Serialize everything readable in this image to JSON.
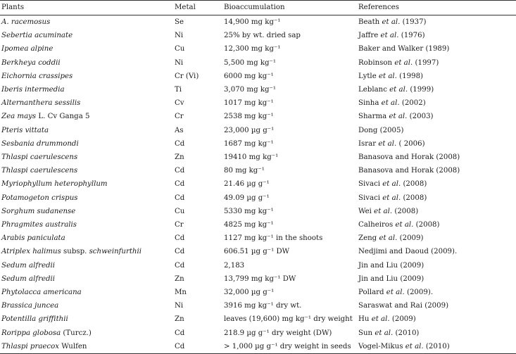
{
  "table": {
    "headers": [
      "Plants",
      "Metal",
      "Bioaccumulation",
      "References"
    ],
    "rows": [
      {
        "plant": "A. racemosus",
        "plant_suffix": "",
        "metal": "Se",
        "bio": "14,900 mg kg⁻¹",
        "ref_pre": "Beath ",
        "ref_ital": "et al.",
        "ref_post": " (1937)"
      },
      {
        "plant": "Sebertia acuminate",
        "plant_suffix": "",
        "metal": "Ni",
        "bio": "25% by wt. dried sap",
        "ref_pre": "Jaffre ",
        "ref_ital": "et al.",
        "ref_post": " (1976)"
      },
      {
        "plant": "Ipomea alpine",
        "plant_suffix": "",
        "metal": "Cu",
        "bio": "12,300 mg kg⁻¹",
        "ref_pre": "Baker and Walker (1989)",
        "ref_ital": "",
        "ref_post": ""
      },
      {
        "plant": "Berkheya coddii",
        "plant_suffix": "",
        "metal": "Ni",
        "bio": "5,500 mg kg⁻¹",
        "ref_pre": "Robinson ",
        "ref_ital": "et al.",
        "ref_post": " (1997)"
      },
      {
        "plant": "Eichornia crassipes",
        "plant_suffix": "",
        "metal": "Cr (Vi)",
        "bio": "6000 mg kg⁻¹",
        "ref_pre": "Lytle ",
        "ref_ital": "et al.",
        "ref_post": " (1998)"
      },
      {
        "plant": "Iberis intermedia",
        "plant_suffix": "",
        "metal": "Ti",
        "bio": "3,070 mg kg⁻¹",
        "ref_pre": "Leblanc ",
        "ref_ital": "et al.",
        "ref_post": " (1999)"
      },
      {
        "plant": "Alternanthera sessilis",
        "plant_suffix": "",
        "metal": "Cv",
        "bio": "1017 mg kg⁻¹",
        "ref_pre": "Sinha ",
        "ref_ital": "et al.",
        "ref_post": " (2002)"
      },
      {
        "plant": "Zea mays",
        "plant_suffix": " L. Cv Ganga 5",
        "metal": "Cr",
        "bio": "2538 mg kg⁻¹",
        "ref_pre": "Sharma ",
        "ref_ital": "et al.",
        "ref_post": " (2003)"
      },
      {
        "plant": "Pteris vittata",
        "plant_suffix": "",
        "metal": "As",
        "bio": "23,000 µg g⁻¹",
        "ref_pre": "Dong (2005)",
        "ref_ital": "",
        "ref_post": ""
      },
      {
        "plant": "Sesbania drummondi",
        "plant_suffix": "",
        "metal": "Cd",
        "bio": "1687 mg kg⁻¹",
        "ref_pre": "Israr ",
        "ref_ital": "et al.",
        "ref_post": " ( 2006)"
      },
      {
        "plant": "Thlaspi caerulescens",
        "plant_suffix": "",
        "metal": "Zn",
        "bio": "19410 mg kg⁻¹",
        "ref_pre": "Banasova and Horak (2008)",
        "ref_ital": "",
        "ref_post": ""
      },
      {
        "plant": "Thlaspi caerulescens",
        "plant_suffix": "",
        "metal": "Cd",
        "bio": "80 mg kg⁻¹",
        "ref_pre": "Banasova and Horak (2008)",
        "ref_ital": "",
        "ref_post": ""
      },
      {
        "plant": "Myriophyllum heterophyllum",
        "plant_suffix": "",
        "metal": "Cd",
        "bio": "21.46 µg g⁻¹",
        "ref_pre": "Sivaci ",
        "ref_ital": "et al.",
        "ref_post": " (2008)"
      },
      {
        "plant": "Potamogeton crispus",
        "plant_suffix": "",
        "metal": "Cd",
        "bio": "49.09 µg g⁻¹",
        "ref_pre": "Sivaci ",
        "ref_ital": "et al.",
        "ref_post": " (2008)"
      },
      {
        "plant": "Sorghum sudanense",
        "plant_suffix": "",
        "metal": "Cu",
        "bio": "5330 mg kg⁻¹",
        "ref_pre": "Wei ",
        "ref_ital": "et al.",
        "ref_post": " (2008)"
      },
      {
        "plant": "Phragmites australis",
        "plant_suffix": "",
        "metal": "Cr",
        "bio": "4825 mg kg⁻¹",
        "ref_pre": "Calheiros ",
        "ref_ital": "et al.",
        "ref_post": " (2008)"
      },
      {
        "plant": "Arabis paniculata",
        "plant_suffix": "",
        "metal": "Cd",
        "bio": "1127 mg kg⁻¹ in the shoots",
        "ref_pre": "Zeng ",
        "ref_ital": "et al.",
        "ref_post": " (2009)"
      },
      {
        "plant": "Atriplex halimus",
        "plant_suffix": " subsp. ",
        "plant_suffix2": "schweinfurthii",
        "metal": "Cd",
        "bio": "606.51 µg g⁻¹ DW",
        "ref_pre": "Nedjimi and Daoud (2009).",
        "ref_ital": "",
        "ref_post": ""
      },
      {
        "plant": "Sedum alfredii",
        "plant_suffix": "",
        "metal": "Cd",
        "bio": "2,183",
        "ref_pre": "Jin and Liu (2009)",
        "ref_ital": "",
        "ref_post": ""
      },
      {
        "plant": "Sedum alfredii",
        "plant_suffix": "",
        "metal": "Zn",
        "bio": "13,799 mg kg⁻¹ DW",
        "ref_pre": "Jin and Liu (2009)",
        "ref_ital": "",
        "ref_post": ""
      },
      {
        "plant": "Phytolacca americana",
        "plant_suffix": "",
        "metal": "Mn",
        "bio": "32,000 µg g⁻¹",
        "ref_pre": "Pollard ",
        "ref_ital": "et al.",
        "ref_post": " (2009)."
      },
      {
        "plant": "Brassica juncea",
        "plant_suffix": "",
        "metal": "Ni",
        "bio": "3916 mg kg⁻¹ dry wt.",
        "ref_pre": "Saraswat and Rai (2009)",
        "ref_ital": "",
        "ref_post": ""
      },
      {
        "plant": "Potentilla griffithii",
        "plant_suffix": "",
        "metal": "Zn",
        "bio": "leaves (19,600) mg kg⁻¹ dry weight",
        "ref_pre": "Hu ",
        "ref_ital": "et al.",
        "ref_post": " (2009)"
      },
      {
        "plant": "Rorippa globosa",
        "plant_suffix": " (Turcz.)",
        "metal": "Cd",
        "bio": "218.9 µg g⁻¹ dry weight (DW)",
        "ref_pre": "Sun ",
        "ref_ital": "et al.",
        "ref_post": " (2010)"
      },
      {
        "plant": "Thlaspi praecox",
        "plant_suffix": " Wulfen",
        "metal": "Cd",
        "bio": "> 1,000 µg g⁻¹ dry weight in seeds",
        "ref_pre": "Vogel-Mikus ",
        "ref_ital": "et al.",
        "ref_post": " (2010)"
      }
    ]
  }
}
